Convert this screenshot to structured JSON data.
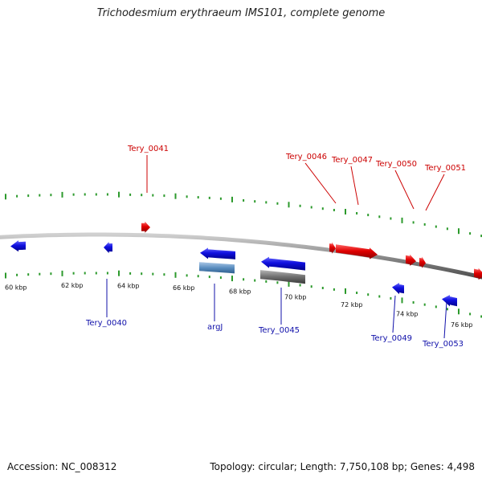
{
  "title": "Trichodesmium erythraeum IMS101, complete genome",
  "footer": {
    "accession": "Accession: NC_008312",
    "summary": "Topology: circular; Length: 7,750,108 bp; Genes: 4,498"
  },
  "colors": {
    "forward": "#e00000",
    "reverse": "#1010e0",
    "tick": "#2c9a2c",
    "backbone": "#8a8a8a",
    "label_forward": "#cc0000",
    "label_reverse": "#1010aa",
    "rna_steel": "#5b8ec0",
    "pseudo_gray": "#6f6f6f"
  },
  "scale_labels": [
    "60 kbp",
    "62 kbp",
    "64 kbp",
    "66 kbp",
    "68 kbp",
    "70 kbp",
    "72 kbp",
    "74 kbp",
    "76 kbp"
  ],
  "genes": [
    {
      "label": "Tery_0041",
      "strand": "forward"
    },
    {
      "label": "Tery_0046",
      "strand": "forward"
    },
    {
      "label": "Tery_0047",
      "strand": "forward"
    },
    {
      "label": "Tery_0050",
      "strand": "forward"
    },
    {
      "label": "Tery_0051",
      "strand": "forward"
    },
    {
      "label": "Tery_0040",
      "strand": "reverse"
    },
    {
      "label": "argJ",
      "strand": "reverse"
    },
    {
      "label": "Tery_0045",
      "strand": "reverse"
    },
    {
      "label": "Tery_0049",
      "strand": "reverse"
    },
    {
      "label": "Tery_0053",
      "strand": "reverse"
    }
  ]
}
